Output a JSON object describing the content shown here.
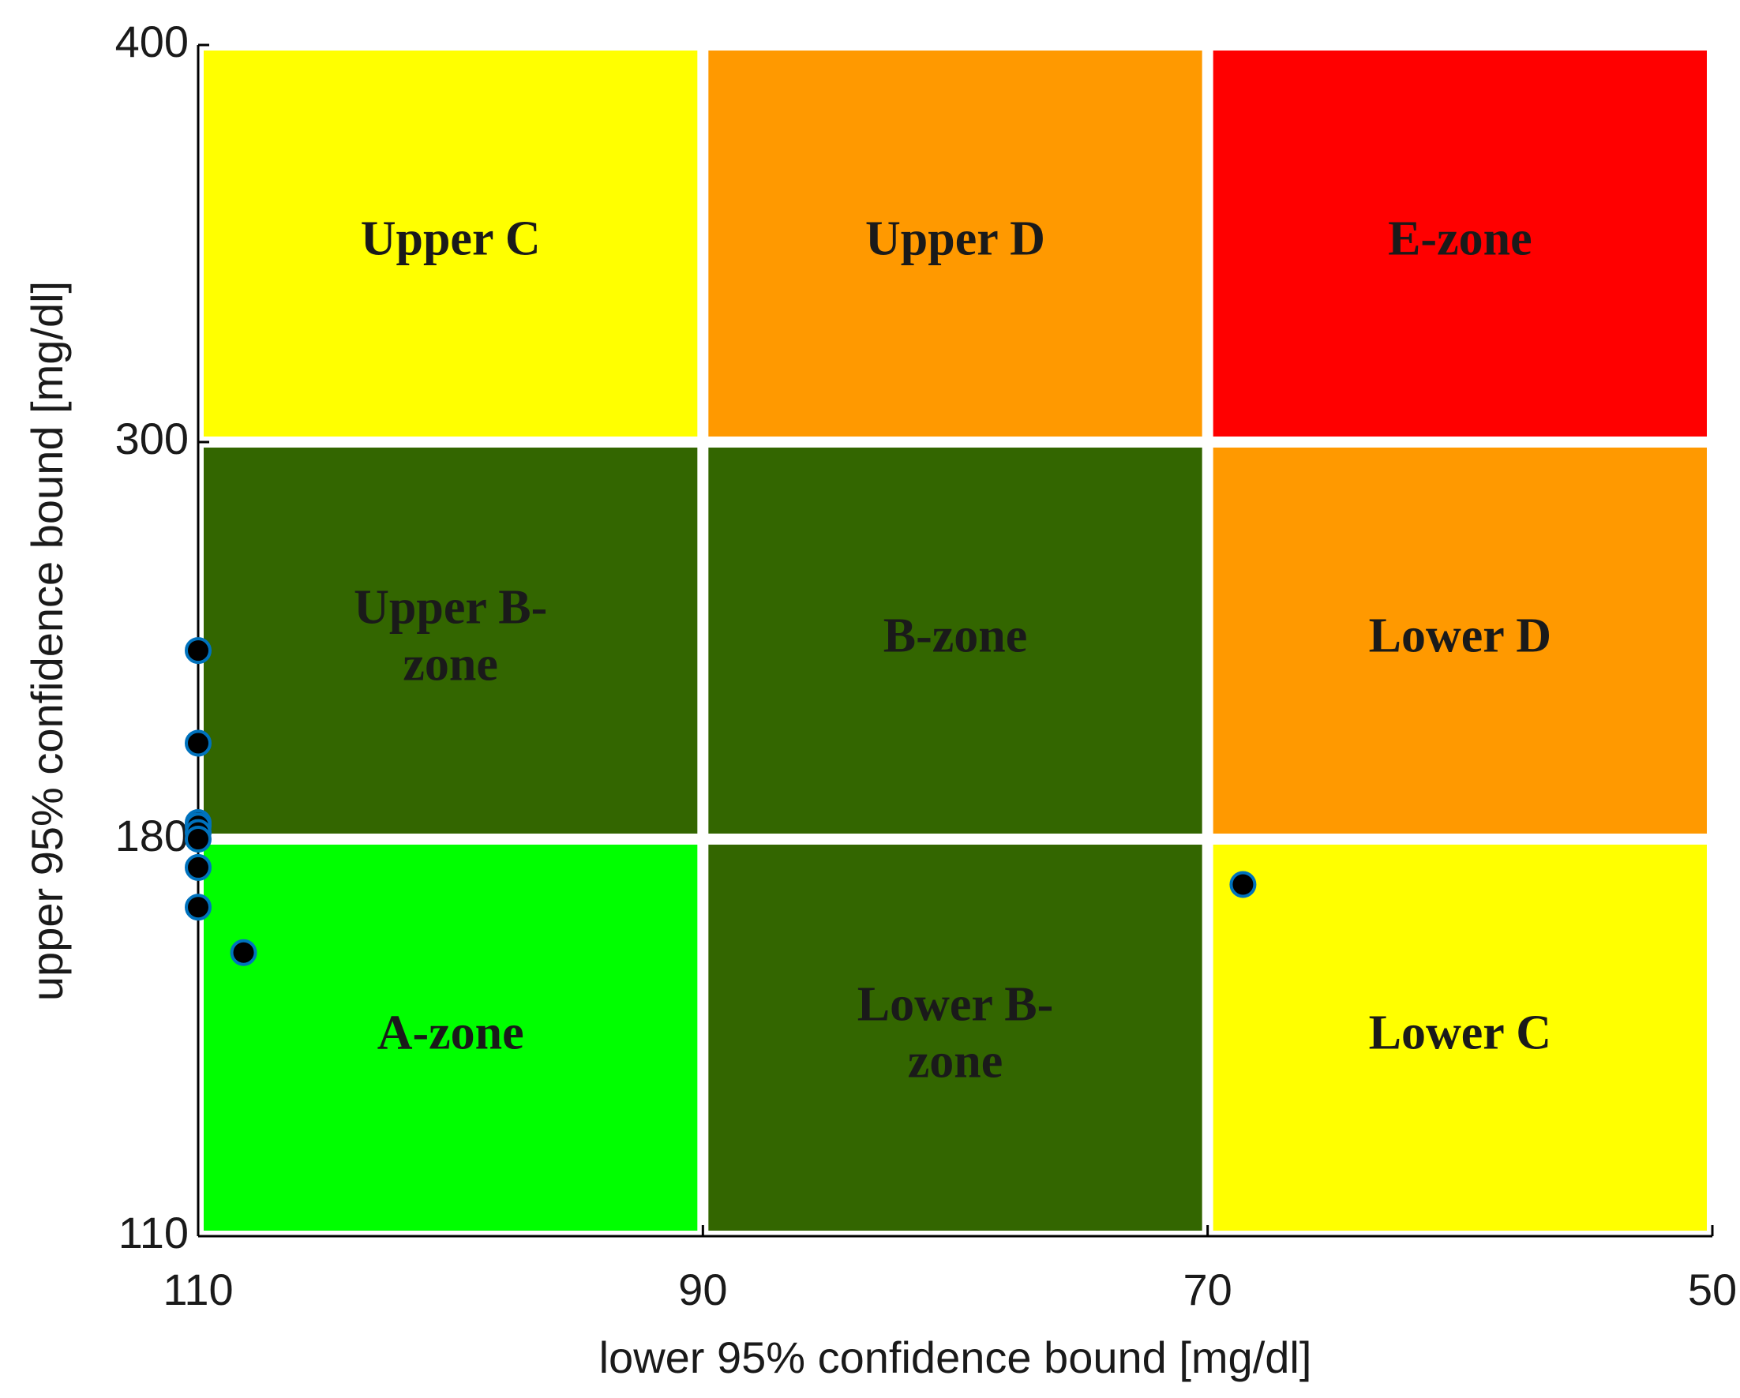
{
  "chart_data": {
    "type": "scatter",
    "xlabel": "lower 95% confidence bound [mg/dl]",
    "ylabel": "upper 95% confidence bound [mg/dl]",
    "xlim": [
      110,
      50
    ],
    "xticks": [
      110,
      90,
      70,
      50
    ],
    "ylim": [
      110,
      400
    ],
    "yticks": [
      110,
      180,
      300,
      400
    ],
    "zones": [
      {
        "lines": [
          "Upper C"
        ],
        "color": "#ffff00",
        "text_color": "#000000",
        "x": [
          110,
          90
        ],
        "y": [
          300,
          400
        ]
      },
      {
        "lines": [
          "Upper D"
        ],
        "color": "#ff9900",
        "text_color": "#000000",
        "x": [
          90,
          70
        ],
        "y": [
          300,
          400
        ]
      },
      {
        "lines": [
          "E-zone"
        ],
        "color": "#ff0000",
        "text_color": "#000000",
        "x": [
          70,
          50
        ],
        "y": [
          300,
          400
        ]
      },
      {
        "lines": [
          "Upper B-",
          "zone"
        ],
        "color": "#336600",
        "text_color": "#ffffff",
        "x": [
          110,
          90
        ],
        "y": [
          180,
          300
        ]
      },
      {
        "lines": [
          "B-zone"
        ],
        "color": "#336600",
        "text_color": "#ffffff",
        "x": [
          90,
          70
        ],
        "y": [
          180,
          300
        ]
      },
      {
        "lines": [
          "Lower D"
        ],
        "color": "#ff9900",
        "text_color": "#000000",
        "x": [
          70,
          50
        ],
        "y": [
          180,
          300
        ]
      },
      {
        "lines": [
          "A-zone"
        ],
        "color": "#00ff00",
        "text_color": "#000000",
        "x": [
          110,
          90
        ],
        "y": [
          110,
          180
        ]
      },
      {
        "lines": [
          "Lower B-",
          "zone"
        ],
        "color": "#336600",
        "text_color": "#ffffff",
        "x": [
          90,
          70
        ],
        "y": [
          110,
          180
        ]
      },
      {
        "lines": [
          "Lower C"
        ],
        "color": "#ffff00",
        "text_color": "#000000",
        "x": [
          70,
          50
        ],
        "y": [
          110,
          180
        ]
      }
    ],
    "marker_color": "#000000",
    "marker_edge": "#0072bd",
    "x": [
      110,
      110,
      110,
      110,
      110,
      110,
      110,
      110,
      108.2,
      68.6
    ],
    "values": [
      237,
      209,
      185,
      184,
      182,
      180,
      175,
      168,
      160,
      172
    ]
  }
}
